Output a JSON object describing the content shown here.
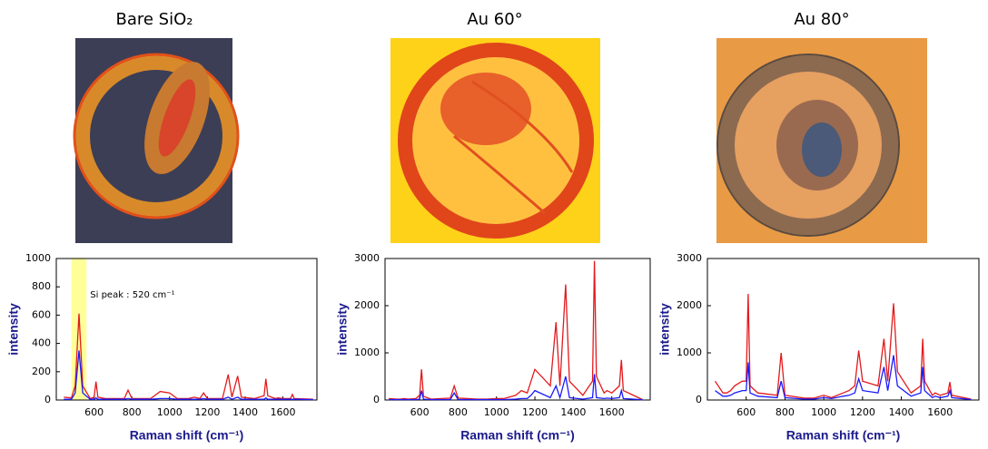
{
  "chart_data": [
    {
      "type": "line",
      "title": "Bare SiO₂",
      "x_label": "Raman shift (cm⁻¹)",
      "y_label": "intensity",
      "annotation": "Si peak : 520 cm⁻¹",
      "xspan": [
        480,
        560
      ],
      "xspan_color": "#ffff99",
      "xlim": [
        400,
        1780
      ],
      "ylim": [
        0,
        1000
      ],
      "xticks": [
        600,
        800,
        1000,
        1200,
        1400,
        1600
      ],
      "yticks": [
        0,
        200,
        400,
        600,
        800,
        1000
      ],
      "x": [
        440,
        480,
        500,
        520,
        540,
        580,
        600,
        610,
        620,
        660,
        760,
        780,
        800,
        900,
        950,
        1000,
        1040,
        1100,
        1130,
        1160,
        1180,
        1200,
        1280,
        1310,
        1330,
        1360,
        1380,
        1450,
        1500,
        1510,
        1520,
        1560,
        1575,
        1600,
        1640,
        1650,
        1660,
        1760
      ],
      "series": [
        {
          "color": "#e31a1c",
          "values": [
            20,
            15,
            100,
            610,
            100,
            10,
            20,
            130,
            20,
            10,
            10,
            70,
            10,
            10,
            60,
            50,
            10,
            10,
            20,
            10,
            50,
            10,
            10,
            180,
            20,
            170,
            20,
            10,
            30,
            150,
            30,
            10,
            15,
            10,
            10,
            40,
            10,
            5
          ]
        },
        {
          "color": "#1a1aff",
          "values": [
            5,
            5,
            50,
            350,
            50,
            5,
            5,
            15,
            5,
            5,
            5,
            10,
            5,
            5,
            10,
            10,
            5,
            5,
            5,
            5,
            10,
            5,
            5,
            20,
            5,
            20,
            5,
            5,
            5,
            15,
            5,
            5,
            5,
            5,
            5,
            5,
            5,
            3
          ]
        }
      ]
    },
    {
      "type": "line",
      "title": "Au 60°",
      "x_label": "Raman shift (cm⁻¹)",
      "y_label": "intensity",
      "xlim": [
        420,
        1800
      ],
      "ylim": [
        0,
        3000
      ],
      "xticks": [
        600,
        800,
        1000,
        1200,
        1400,
        1600
      ],
      "yticks": [
        0,
        1000,
        2000,
        3000
      ],
      "x": [
        440,
        480,
        500,
        520,
        540,
        580,
        600,
        610,
        620,
        660,
        760,
        780,
        800,
        900,
        950,
        1000,
        1040,
        1100,
        1130,
        1160,
        1180,
        1200,
        1280,
        1310,
        1330,
        1360,
        1380,
        1450,
        1500,
        1510,
        1520,
        1560,
        1575,
        1600,
        1640,
        1650,
        1660,
        1760
      ],
      "series": [
        {
          "color": "#e31a1c",
          "values": [
            30,
            20,
            20,
            30,
            20,
            30,
            100,
            650,
            80,
            20,
            40,
            300,
            40,
            20,
            20,
            30,
            30,
            100,
            200,
            150,
            400,
            650,
            300,
            1650,
            300,
            2450,
            400,
            100,
            400,
            2950,
            500,
            150,
            200,
            150,
            300,
            850,
            200,
            10
          ]
        },
        {
          "color": "#1a1aff",
          "values": [
            10,
            10,
            10,
            10,
            10,
            10,
            20,
            200,
            20,
            10,
            10,
            150,
            10,
            10,
            10,
            10,
            10,
            20,
            30,
            30,
            100,
            200,
            50,
            300,
            50,
            500,
            50,
            20,
            50,
            550,
            50,
            30,
            40,
            30,
            50,
            200,
            30,
            5
          ]
        }
      ]
    },
    {
      "type": "line",
      "title": "Au 80°",
      "x_label": "Raman shift (cm⁻¹)",
      "y_label": "intensity",
      "xlim": [
        400,
        1800
      ],
      "ylim": [
        0,
        3000
      ],
      "xticks": [
        600,
        800,
        1000,
        1200,
        1400,
        1600
      ],
      "yticks": [
        0,
        1000,
        2000,
        3000
      ],
      "x": [
        440,
        480,
        500,
        520,
        540,
        580,
        600,
        610,
        620,
        660,
        760,
        780,
        800,
        900,
        950,
        1000,
        1040,
        1100,
        1130,
        1160,
        1180,
        1200,
        1280,
        1310,
        1330,
        1360,
        1380,
        1450,
        1500,
        1510,
        1520,
        1560,
        1575,
        1600,
        1640,
        1650,
        1660,
        1760
      ],
      "series": [
        {
          "color": "#e31a1c",
          "values": [
            400,
            150,
            150,
            200,
            300,
            400,
            400,
            2250,
            300,
            150,
            100,
            1000,
            100,
            40,
            40,
            100,
            50,
            150,
            200,
            300,
            1050,
            400,
            300,
            1300,
            400,
            2050,
            600,
            150,
            300,
            1300,
            400,
            100,
            150,
            100,
            150,
            380,
            100,
            20
          ]
        },
        {
          "color": "#1a1aff",
          "values": [
            200,
            80,
            80,
            100,
            150,
            200,
            200,
            800,
            150,
            80,
            50,
            400,
            50,
            20,
            20,
            50,
            30,
            80,
            100,
            150,
            450,
            200,
            150,
            700,
            200,
            950,
            300,
            80,
            150,
            700,
            200,
            50,
            80,
            50,
            80,
            200,
            50,
            10
          ]
        }
      ]
    }
  ]
}
